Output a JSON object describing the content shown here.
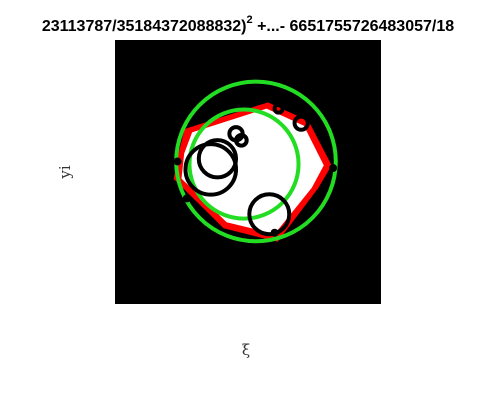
{
  "chart_data": {
    "type": "other",
    "title": {
      "left": "23113787/35184372088832)",
      "exponent": "2",
      "right": " +...- 6651755726483057/18"
    },
    "xlabel": "ξ",
    "ylabel": "yi",
    "axes_visible": false,
    "grid": false,
    "background_color": "#000000",
    "xlim": [
      -1,
      1
    ],
    "ylim": [
      -1,
      1
    ],
    "red_polygon": {
      "color": "#ff0000",
      "points": [
        [
          -0.52,
          0.12
        ],
        [
          -0.47,
          0.32
        ],
        [
          0.15,
          0.52
        ],
        [
          0.45,
          0.38
        ],
        [
          0.62,
          0.05
        ],
        [
          0.52,
          -0.12
        ],
        [
          0.22,
          -0.52
        ],
        [
          -0.18,
          -0.42
        ],
        [
          -0.55,
          -0.05
        ]
      ]
    },
    "white_fill": {
      "color": "#ffffff",
      "points": [
        [
          -0.48,
          0.14
        ],
        [
          -0.42,
          0.3
        ],
        [
          0.14,
          0.48
        ],
        [
          0.42,
          0.35
        ],
        [
          0.57,
          0.05
        ],
        [
          0.48,
          -0.12
        ],
        [
          0.2,
          -0.47
        ],
        [
          -0.16,
          -0.38
        ],
        [
          -0.5,
          -0.05
        ]
      ]
    },
    "green_circles": [
      {
        "cx": 0.06,
        "cy": 0.08,
        "r": 0.6
      },
      {
        "cx": -0.03,
        "cy": 0.06,
        "r": 0.41
      }
    ],
    "green_color": "#22dd22",
    "black_circles": [
      {
        "cx": -0.28,
        "cy": 0.02,
        "r": 0.19
      },
      {
        "cx": -0.23,
        "cy": 0.1,
        "r": 0.14
      },
      {
        "cx": 0.16,
        "cy": -0.32,
        "r": 0.15
      },
      {
        "cx": -0.09,
        "cy": 0.29,
        "r": 0.05
      },
      {
        "cx": -0.05,
        "cy": 0.24,
        "r": 0.04
      },
      {
        "cx": 0.4,
        "cy": 0.37,
        "r": 0.05
      },
      {
        "cx": 0.23,
        "cy": 0.48,
        "r": 0.03
      }
    ],
    "black_dots": [
      {
        "cx": -0.53,
        "cy": 0.08
      },
      {
        "cx": 0.64,
        "cy": 0.03
      },
      {
        "cx": -0.46,
        "cy": -0.2
      },
      {
        "cx": 0.2,
        "cy": -0.46
      }
    ]
  }
}
